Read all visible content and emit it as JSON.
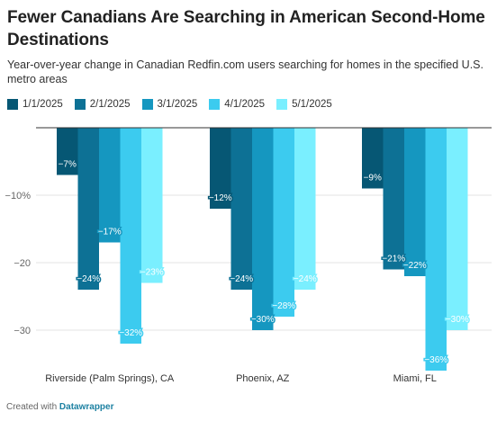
{
  "title": "Fewer Canadians Are Searching in American Second-Home Destinations",
  "subtitle": "Year-over-year change in Canadian Redfin.com users searching for homes in the specified U.S. metro areas",
  "credit": {
    "prefix": "Created with",
    "tool": "Datawrapper"
  },
  "legend": [
    {
      "label": "1/1/2025",
      "color": "#065774"
    },
    {
      "label": "2/1/2025",
      "color": "#0d7195"
    },
    {
      "label": "3/1/2025",
      "color": "#1597c0"
    },
    {
      "label": "4/1/2025",
      "color": "#3ccbef"
    },
    {
      "label": "5/1/2025",
      "color": "#7aefff"
    }
  ],
  "chart_data": {
    "type": "bar",
    "categories": [
      "Riverside (Palm Springs), CA",
      "Phoenix, AZ",
      "Miami, FL"
    ],
    "series": [
      {
        "name": "1/1/2025",
        "color": "#065774",
        "values": [
          -7,
          -12,
          -9
        ],
        "labels": [
          "−7%",
          "−12%",
          "−9%"
        ]
      },
      {
        "name": "2/1/2025",
        "color": "#0d7195",
        "values": [
          -24,
          -24,
          -21
        ],
        "labels": [
          "−24%",
          "−24%",
          "−21%"
        ]
      },
      {
        "name": "3/1/2025",
        "color": "#1597c0",
        "values": [
          -17,
          -30,
          -22
        ],
        "labels": [
          "−17%",
          "−30%",
          "−22%"
        ]
      },
      {
        "name": "4/1/2025",
        "color": "#3ccbef",
        "values": [
          -32,
          -28,
          -36
        ],
        "labels": [
          "−32%",
          "−28%",
          "−36%"
        ]
      },
      {
        "name": "5/1/2025",
        "color": "#7aefff",
        "values": [
          -23,
          -24,
          -30
        ],
        "labels": [
          "−23%",
          "−24%",
          "−30%"
        ]
      }
    ],
    "ylim": [
      -36,
      0
    ],
    "y_ticks": [
      {
        "value": -10,
        "label": "−10%"
      },
      {
        "value": -20,
        "label": "−20"
      },
      {
        "value": -30,
        "label": "−30"
      }
    ],
    "legend_position": "top-left",
    "grid": true
  }
}
